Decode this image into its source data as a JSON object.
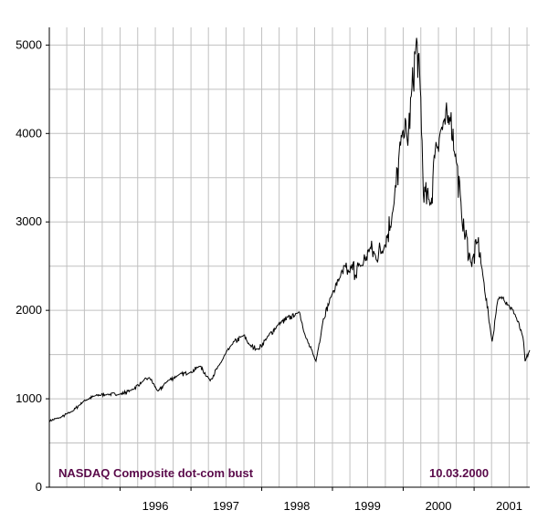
{
  "chart_data": {
    "type": "line",
    "title": "",
    "xlabel": "",
    "ylabel": "",
    "xlim": [
      "1995-01-01",
      "2001-10-15"
    ],
    "ylim": [
      0,
      5200
    ],
    "grid": true,
    "y_ticks": [
      0,
      1000,
      2000,
      3000,
      4000,
      5000
    ],
    "x_ticks": [
      "1996",
      "1997",
      "1998",
      "1999",
      "2000",
      "2001"
    ],
    "annotations": {
      "left": "NASDAQ Composite dot-com bust",
      "right": "10.03.2000"
    },
    "colors": {
      "line": "#000000",
      "grid": "#c0c0c0",
      "annotation": "#5a0a4a"
    },
    "series": [
      {
        "x": [
          "1995-01-01",
          "1995-03-01",
          "1995-05-01",
          "1995-07-01",
          "1995-09-01",
          "1995-11-01",
          "1996-01-01",
          "1996-03-01",
          "1996-05-01",
          "1996-06-01",
          "1996-07-15",
          "1996-09-01",
          "1996-11-01",
          "1997-01-01",
          "1997-02-15",
          "1997-04-10",
          "1997-06-01",
          "1997-08-01",
          "1997-10-01",
          "1997-11-01",
          "1997-12-15",
          "1998-02-01",
          "1998-04-01",
          "1998-07-15",
          "1998-08-15",
          "1998-10-08",
          "1998-11-15",
          "1999-01-01",
          "1999-02-15",
          "1999-04-01",
          "1999-06-01",
          "1999-07-15",
          "1999-08-15",
          "1999-10-01",
          "1999-11-15",
          "2000-01-01",
          "2000-01-25",
          "2000-02-15",
          "2000-03-10",
          "2000-04-01",
          "2000-04-14",
          "2000-05-24",
          "2000-06-15",
          "2000-07-15",
          "2000-08-01",
          "2000-09-01",
          "2000-10-01",
          "2000-11-01",
          "2000-12-20",
          "2001-01-20",
          "2001-02-15",
          "2001-04-04",
          "2001-05-01",
          "2001-06-01",
          "2001-07-01",
          "2001-08-01",
          "2001-09-10",
          "2001-09-21",
          "2001-10-15"
        ],
        "y": [
          750,
          790,
          860,
          980,
          1040,
          1050,
          1050,
          1100,
          1200,
          1240,
          1080,
          1200,
          1270,
          1300,
          1370,
          1210,
          1400,
          1620,
          1720,
          1600,
          1560,
          1700,
          1850,
          1980,
          1700,
          1420,
          1900,
          2200,
          2400,
          2450,
          2500,
          2700,
          2600,
          2750,
          3200,
          4100,
          3900,
          4500,
          5050,
          4400,
          3320,
          3200,
          3850,
          4050,
          4100,
          4200,
          3700,
          3000,
          2500,
          2800,
          2400,
          1640,
          2100,
          2150,
          2050,
          1950,
          1700,
          1420,
          1550
        ]
      }
    ]
  }
}
